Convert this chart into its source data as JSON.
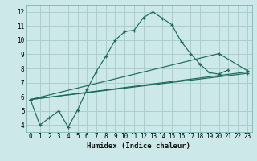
{
  "xlabel": "Humidex (Indice chaleur)",
  "background_color": "#cce8e8",
  "grid_color": "#aacece",
  "line_color": "#1a6b5a",
  "xlim": [
    -0.5,
    23.5
  ],
  "ylim": [
    3.5,
    12.5
  ],
  "xticks": [
    0,
    1,
    2,
    3,
    4,
    5,
    6,
    7,
    8,
    9,
    10,
    11,
    12,
    13,
    14,
    15,
    16,
    17,
    18,
    19,
    20,
    21,
    22,
    23
  ],
  "yticks": [
    4,
    5,
    6,
    7,
    8,
    9,
    10,
    11,
    12
  ],
  "series1_x": [
    0,
    1,
    2,
    3,
    4,
    5,
    6,
    7,
    8,
    9,
    10,
    11,
    12,
    13,
    14,
    15,
    16,
    17,
    18,
    19,
    20,
    21
  ],
  "series1_y": [
    5.8,
    4.0,
    4.5,
    5.0,
    3.85,
    5.05,
    6.5,
    7.8,
    8.85,
    10.0,
    10.6,
    10.7,
    11.6,
    12.0,
    11.55,
    11.1,
    9.9,
    9.05,
    8.3,
    7.7,
    7.6,
    7.9
  ],
  "series2_x": [
    0,
    23
  ],
  "series2_y": [
    5.8,
    7.75
  ],
  "series3_x": [
    0,
    23
  ],
  "series3_y": [
    5.8,
    7.65
  ],
  "series4_x": [
    0,
    20,
    23
  ],
  "series4_y": [
    5.8,
    9.05,
    7.85
  ]
}
